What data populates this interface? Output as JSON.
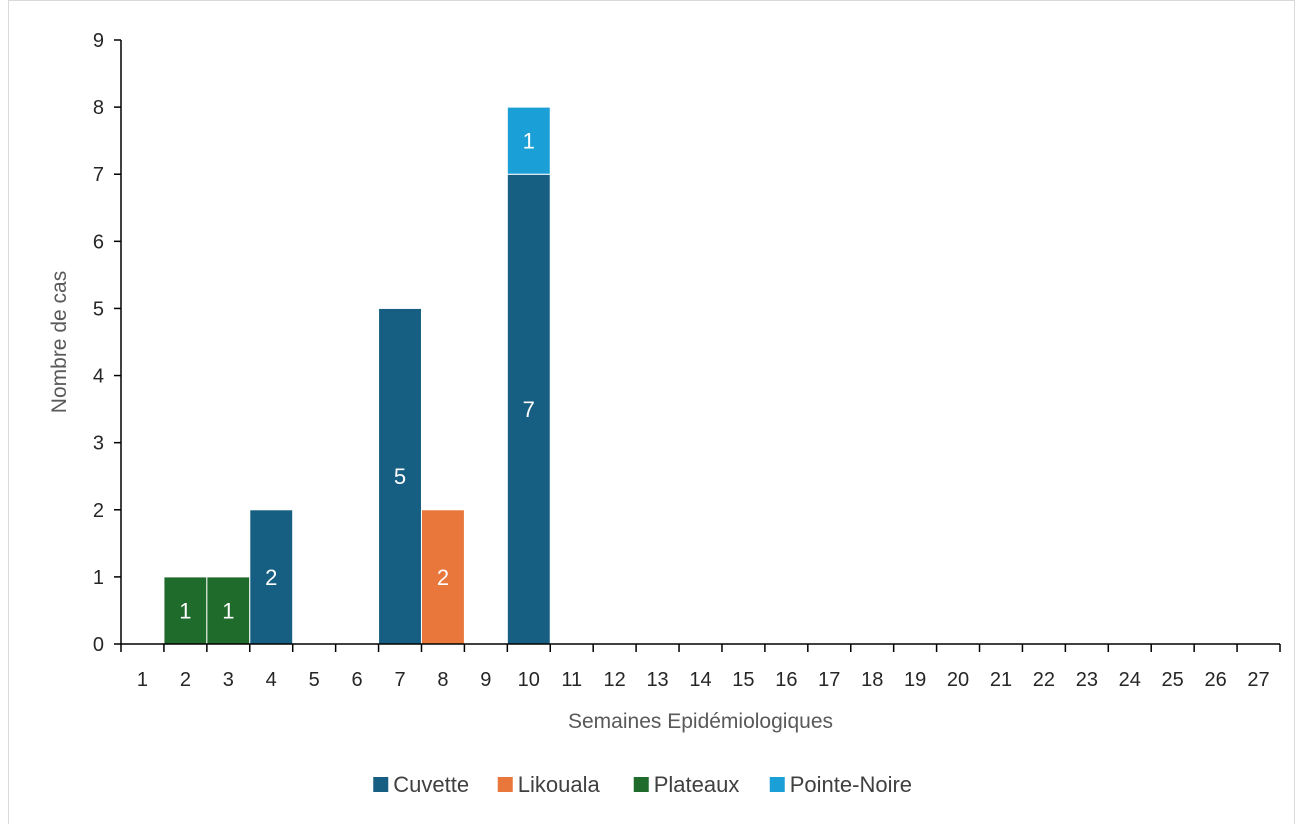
{
  "chart_data": {
    "type": "bar",
    "stacked": true,
    "categories": [
      "1",
      "2",
      "3",
      "4",
      "5",
      "6",
      "7",
      "8",
      "9",
      "10",
      "11",
      "12",
      "13",
      "14",
      "15",
      "16",
      "17",
      "18",
      "19",
      "20",
      "21",
      "22",
      "23",
      "24",
      "25",
      "26",
      "27"
    ],
    "series": [
      {
        "name": "Cuvette",
        "color": "#175f82",
        "values": [
          0,
          0,
          0,
          2,
          0,
          0,
          5,
          0,
          0,
          7,
          0,
          0,
          0,
          0,
          0,
          0,
          0,
          0,
          0,
          0,
          0,
          0,
          0,
          0,
          0,
          0,
          0
        ]
      },
      {
        "name": "Likouala",
        "color": "#e9763a",
        "values": [
          0,
          0,
          0,
          0,
          0,
          0,
          0,
          2,
          0,
          0,
          0,
          0,
          0,
          0,
          0,
          0,
          0,
          0,
          0,
          0,
          0,
          0,
          0,
          0,
          0,
          0,
          0
        ]
      },
      {
        "name": "Plateaux",
        "color": "#1e6b2c",
        "values": [
          0,
          1,
          1,
          0,
          0,
          0,
          0,
          0,
          0,
          0,
          0,
          0,
          0,
          0,
          0,
          0,
          0,
          0,
          0,
          0,
          0,
          0,
          0,
          0,
          0,
          0,
          0
        ]
      },
      {
        "name": "Pointe-Noire",
        "color": "#1aa0d6",
        "values": [
          0,
          0,
          0,
          0,
          0,
          0,
          0,
          0,
          0,
          1,
          0,
          0,
          0,
          0,
          0,
          0,
          0,
          0,
          0,
          0,
          0,
          0,
          0,
          0,
          0,
          0,
          0
        ]
      }
    ],
    "xlabel": "Semaines Epidémiologiques",
    "ylabel": "Nombre de cas",
    "ylim": [
      0,
      9
    ],
    "yticks": [
      0,
      1,
      2,
      3,
      4,
      5,
      6,
      7,
      8,
      9
    ],
    "grid": false,
    "legend": "bottom",
    "data_labels": true
  }
}
